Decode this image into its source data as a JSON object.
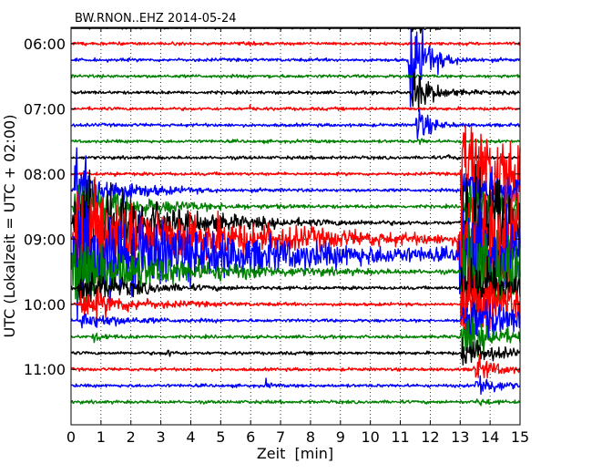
{
  "chart_data": {
    "type": "line",
    "title": "BW.RNON..EHZ 2014-05-24",
    "xlabel": "Zeit  [min]",
    "ylabel": "UTC (Lokalzeit = UTC + 02:00)",
    "xlim": [
      0,
      15
    ],
    "x_ticks": [
      "0",
      "1",
      "2",
      "3",
      "4",
      "5",
      "6",
      "7",
      "8",
      "9",
      "10",
      "11",
      "12",
      "13",
      "14",
      "15"
    ],
    "y_ticks": [
      "06:00",
      "07:00",
      "08:00",
      "09:00",
      "10:00",
      "11:00"
    ],
    "ylim_hours": [
      5.75,
      11.85
    ],
    "grid": true,
    "trace_colors": [
      "#000000",
      "#ff0000",
      "#0000ff",
      "#008000"
    ],
    "traces": [
      {
        "start": "05:45",
        "color": "#000000"
      },
      {
        "start": "06:00",
        "color": "#ff0000"
      },
      {
        "start": "06:15",
        "color": "#0000ff"
      },
      {
        "start": "06:30",
        "color": "#008000"
      },
      {
        "start": "06:45",
        "color": "#000000"
      },
      {
        "start": "07:00",
        "color": "#ff0000"
      },
      {
        "start": "07:15",
        "color": "#0000ff"
      },
      {
        "start": "07:30",
        "color": "#008000"
      },
      {
        "start": "07:45",
        "color": "#000000"
      },
      {
        "start": "08:00",
        "color": "#ff0000"
      },
      {
        "start": "08:15",
        "color": "#0000ff"
      },
      {
        "start": "08:30",
        "color": "#008000"
      },
      {
        "start": "08:45",
        "color": "#000000"
      },
      {
        "start": "09:00",
        "color": "#ff0000"
      },
      {
        "start": "09:15",
        "color": "#0000ff"
      },
      {
        "start": "09:30",
        "color": "#008000"
      },
      {
        "start": "09:45",
        "color": "#000000"
      },
      {
        "start": "10:00",
        "color": "#ff0000"
      },
      {
        "start": "10:15",
        "color": "#0000ff"
      },
      {
        "start": "10:30",
        "color": "#008000"
      },
      {
        "start": "10:45",
        "color": "#000000"
      },
      {
        "start": "11:00",
        "color": "#ff0000"
      },
      {
        "start": "11:15",
        "color": "#0000ff"
      },
      {
        "start": "11:30",
        "color": "#008000"
      }
    ]
  }
}
